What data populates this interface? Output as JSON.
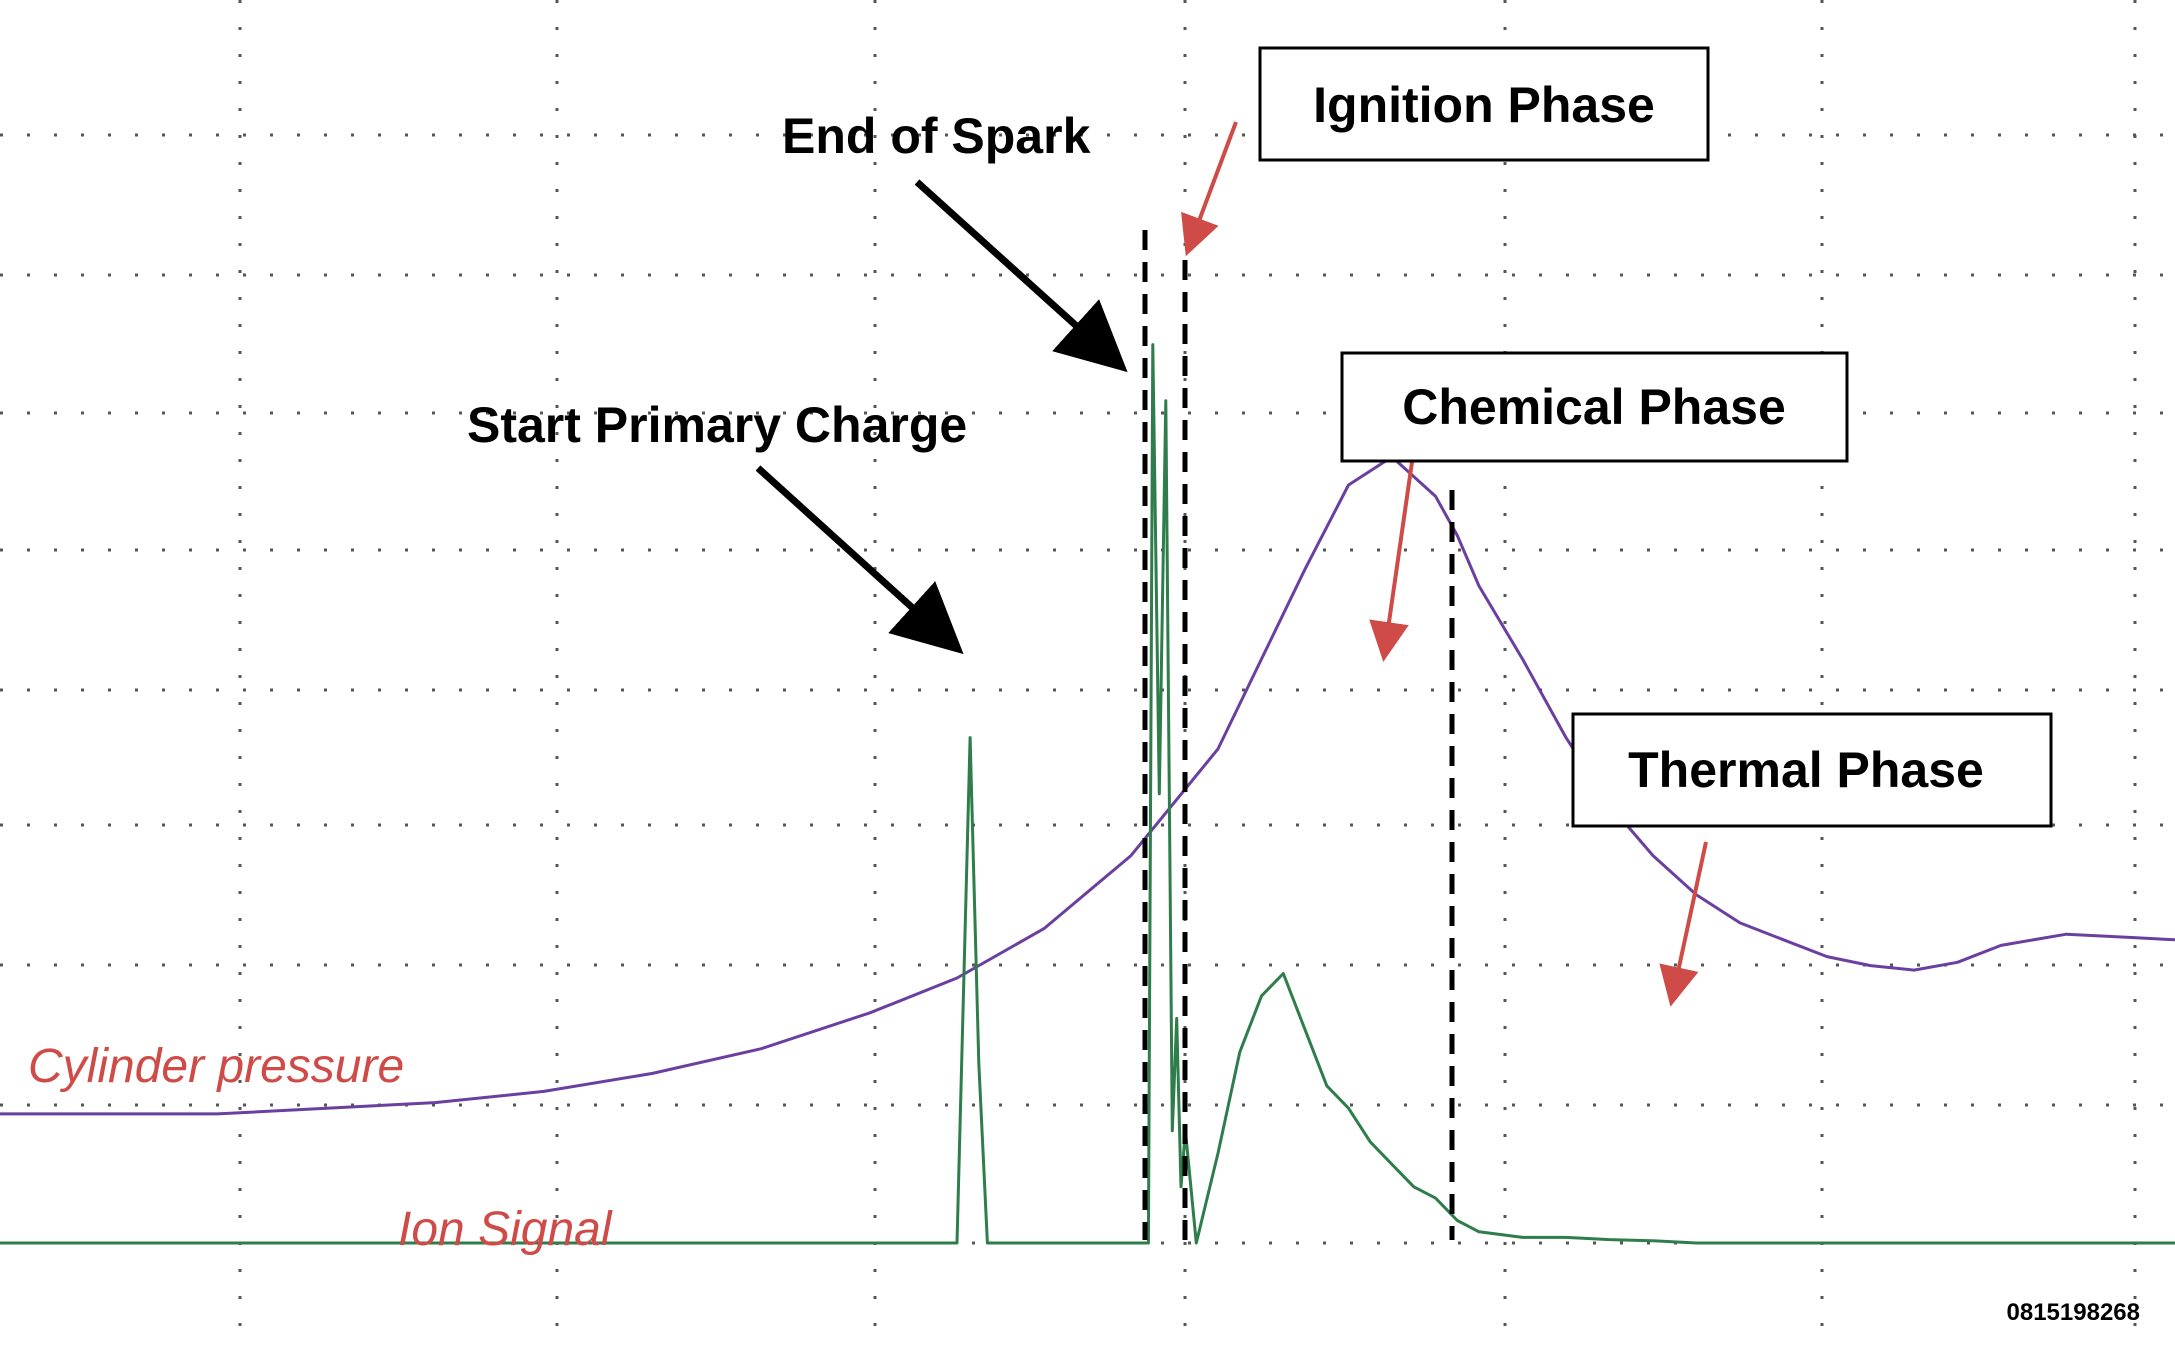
{
  "chart_data": {
    "type": "line",
    "xlabel": "",
    "ylabel": "",
    "grid": true,
    "xlim": [
      0,
      100
    ],
    "ylim": [
      0,
      100
    ],
    "series": [
      {
        "name": "Cylinder pressure",
        "color": "#6a3fa0",
        "x": [
          0,
          10,
          20,
          25,
          30,
          35,
          40,
          44,
          48,
          52,
          56,
          58,
          60,
          62,
          64,
          66,
          67,
          68,
          70,
          72,
          74,
          76,
          78,
          80,
          82,
          84,
          86,
          88,
          90,
          92,
          95,
          98,
          100
        ],
        "y": [
          11.5,
          11.5,
          12.5,
          13.5,
          15.1,
          17.3,
          20.5,
          23.6,
          28,
          34.5,
          44,
          52,
          60,
          67.5,
          70,
          66.5,
          63,
          58.5,
          52,
          45,
          39,
          34.5,
          31,
          28.5,
          27,
          25.5,
          24.7,
          24.3,
          25,
          26.5,
          27.5,
          27.2,
          27
        ]
      },
      {
        "name": "Ion Signal",
        "color": "#2e7d4a",
        "x": [
          0,
          10,
          20,
          30,
          40,
          44,
          44.6,
          45,
          45.4,
          46,
          52,
          52.8,
          53,
          53.3,
          53.6,
          53.9,
          54.1,
          54.3,
          54.5,
          55,
          56,
          57,
          58,
          59,
          60,
          61,
          62,
          63,
          64,
          65,
          66,
          67,
          68,
          70,
          72,
          74,
          76,
          78,
          80,
          82,
          84,
          86,
          88,
          90,
          92,
          95,
          98,
          100
        ],
        "y": [
          0,
          0,
          0,
          0,
          0,
          0,
          45,
          16,
          0,
          0,
          0,
          0,
          80,
          40,
          75,
          10,
          20,
          5,
          10,
          0,
          8,
          17,
          22,
          24,
          19,
          14,
          12,
          9,
          7,
          5,
          4,
          2,
          1,
          0.5,
          0.5,
          0.3,
          0.2,
          0,
          0,
          0,
          0,
          0,
          0,
          0,
          0,
          0,
          0,
          0
        ]
      }
    ],
    "annotations": [
      {
        "text": "Start Primary Charge",
        "boxed": false
      },
      {
        "text": "End of Spark",
        "boxed": false
      },
      {
        "text": "Ignition Phase",
        "boxed": true
      },
      {
        "text": "Chemical Phase",
        "boxed": true
      },
      {
        "text": "Thermal Phase",
        "boxed": true
      }
    ],
    "series_labels": [
      {
        "text": "Cylinder pressure",
        "color": "#cf4b47"
      },
      {
        "text": "Ion Signal",
        "color": "#cf4b47"
      }
    ],
    "figure_id": "0815198268"
  }
}
